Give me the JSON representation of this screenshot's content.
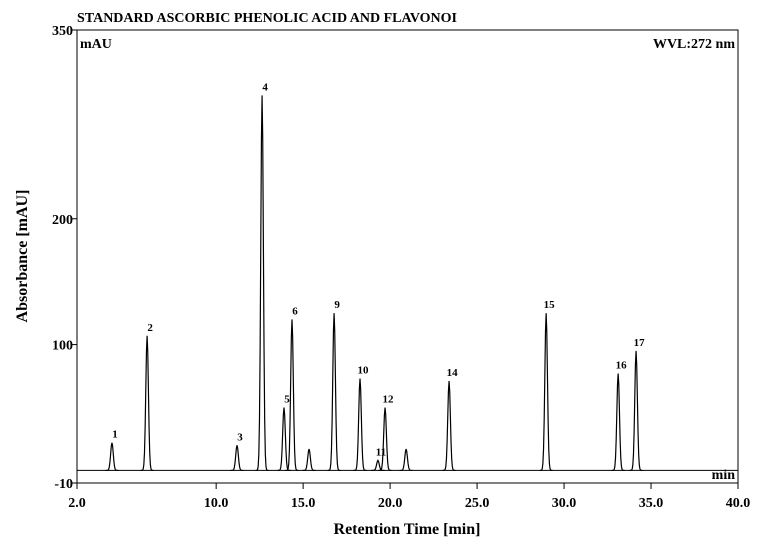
{
  "chart_data": {
    "type": "chromatogram",
    "title": "STANDARD ASCORBIC PHENOLIC ACID AND FLAVONOI",
    "y_unit": "mAU",
    "wavelength": "WVL:272 nm",
    "x_unit": "min",
    "xlabel": "Retention Time [min]",
    "ylabel": "Absorbance [mAU]",
    "xlim": [
      2,
      40
    ],
    "ylim": [
      -10,
      350
    ],
    "xticks": [
      {
        "value": 2,
        "label": "2.0"
      },
      {
        "value": 10,
        "label": "10.0"
      },
      {
        "value": 15,
        "label": "15.0"
      },
      {
        "value": 20,
        "label": "20.0"
      },
      {
        "value": 25,
        "label": "25.0"
      },
      {
        "value": 30,
        "label": "30.0"
      },
      {
        "value": 35,
        "label": "35.0"
      },
      {
        "value": 40,
        "label": "40.0"
      }
    ],
    "yticks": [
      -10,
      100,
      200,
      350
    ],
    "baseline": 0,
    "color": "#000000",
    "x": [
      4.01,
      6.03,
      11.2,
      12.64,
      13.9,
      14.36,
      15.34,
      16.78,
      18.27,
      19.3,
      19.71,
      20.92,
      23.39,
      28.97,
      33.11,
      34.14
    ],
    "values": [
      22,
      107,
      20,
      298,
      50,
      120,
      17,
      125,
      73,
      8,
      50,
      17,
      71,
      125,
      77,
      95
    ],
    "peak_labels": [
      "1",
      "2",
      "3",
      "4",
      "5",
      "6",
      null,
      "9",
      "10",
      "11",
      "12",
      null,
      "14",
      "15",
      "16",
      "17"
    ]
  }
}
